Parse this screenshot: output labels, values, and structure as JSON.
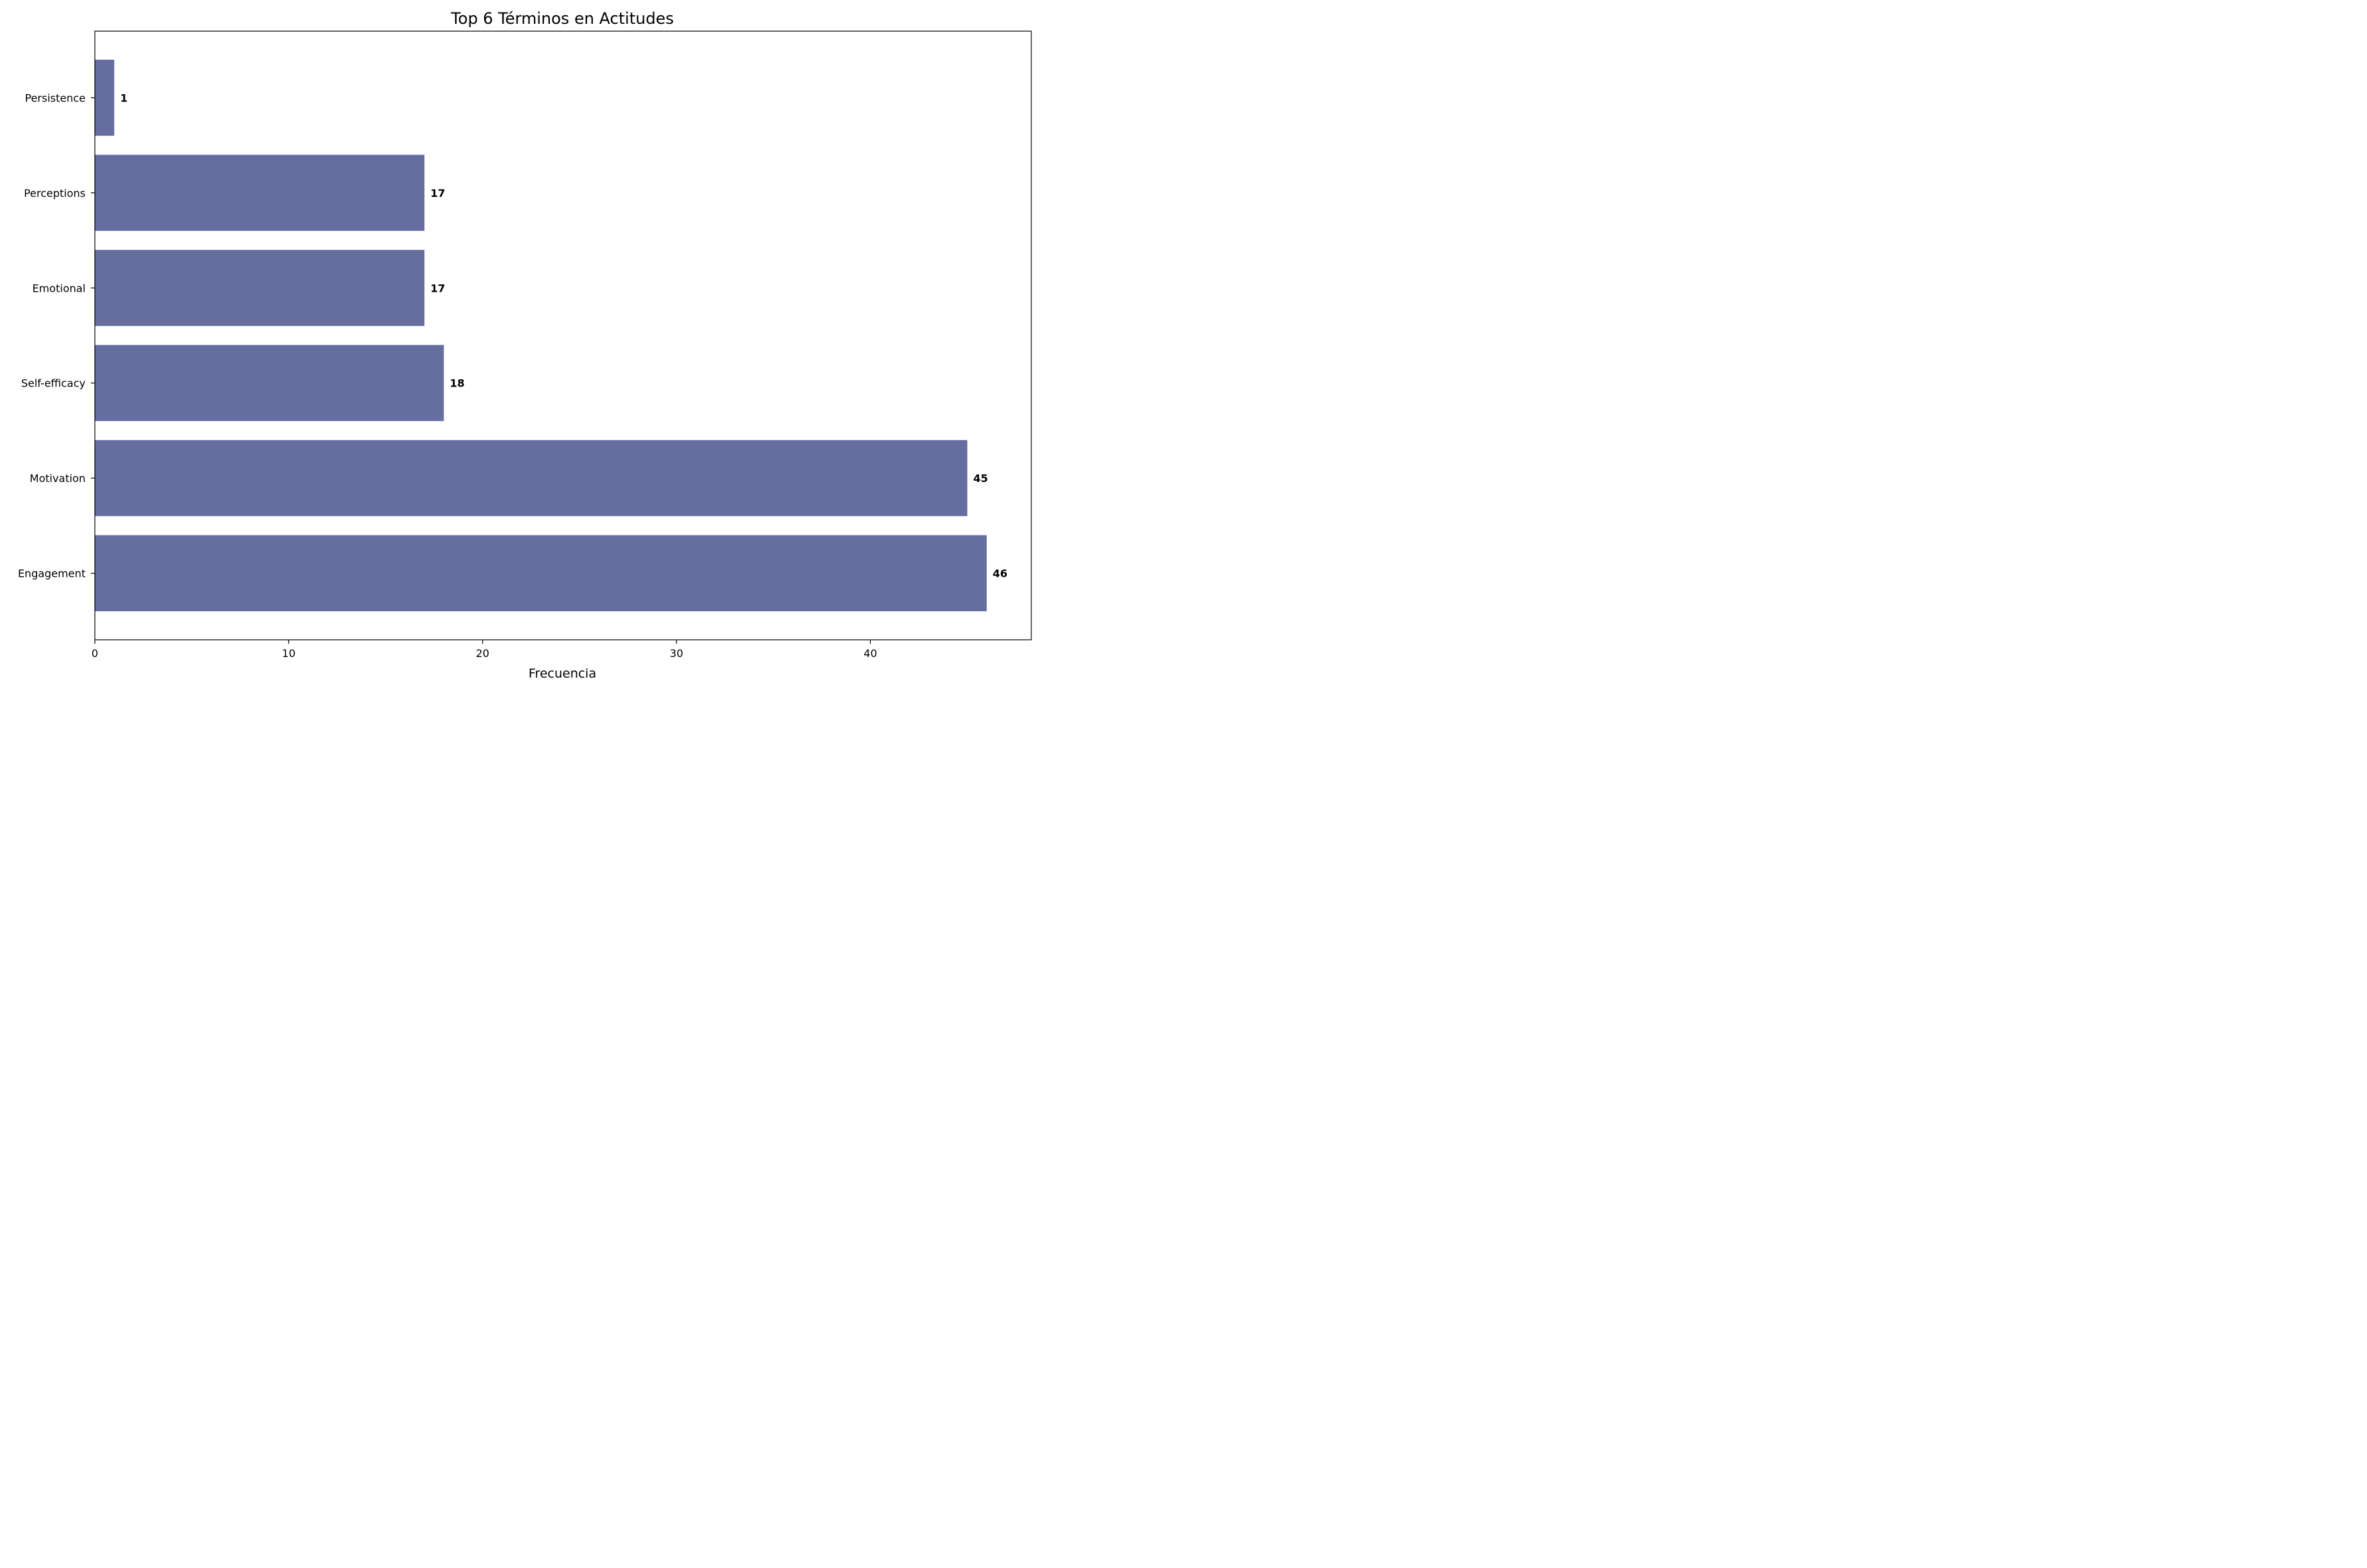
{
  "chart_data": {
    "type": "bar",
    "orientation": "horizontal",
    "title": "Top 6 Términos en Actitudes",
    "xlabel": "Frecuencia",
    "ylabel": "",
    "categories": [
      "Engagement",
      "Motivation",
      "Self-efficacy",
      "Emotional",
      "Perceptions",
      "Persistence"
    ],
    "values": [
      46,
      45,
      18,
      17,
      17,
      1
    ],
    "value_labels": [
      "46",
      "45",
      "18",
      "17",
      "17",
      "1"
    ],
    "xlim": [
      0,
      48.3
    ],
    "xticks": [
      0,
      10,
      20,
      30,
      40
    ],
    "xtick_labels": [
      "0",
      "10",
      "20",
      "30",
      "40"
    ],
    "bar_color": "#666d9f",
    "grid": false,
    "legend": "none"
  }
}
